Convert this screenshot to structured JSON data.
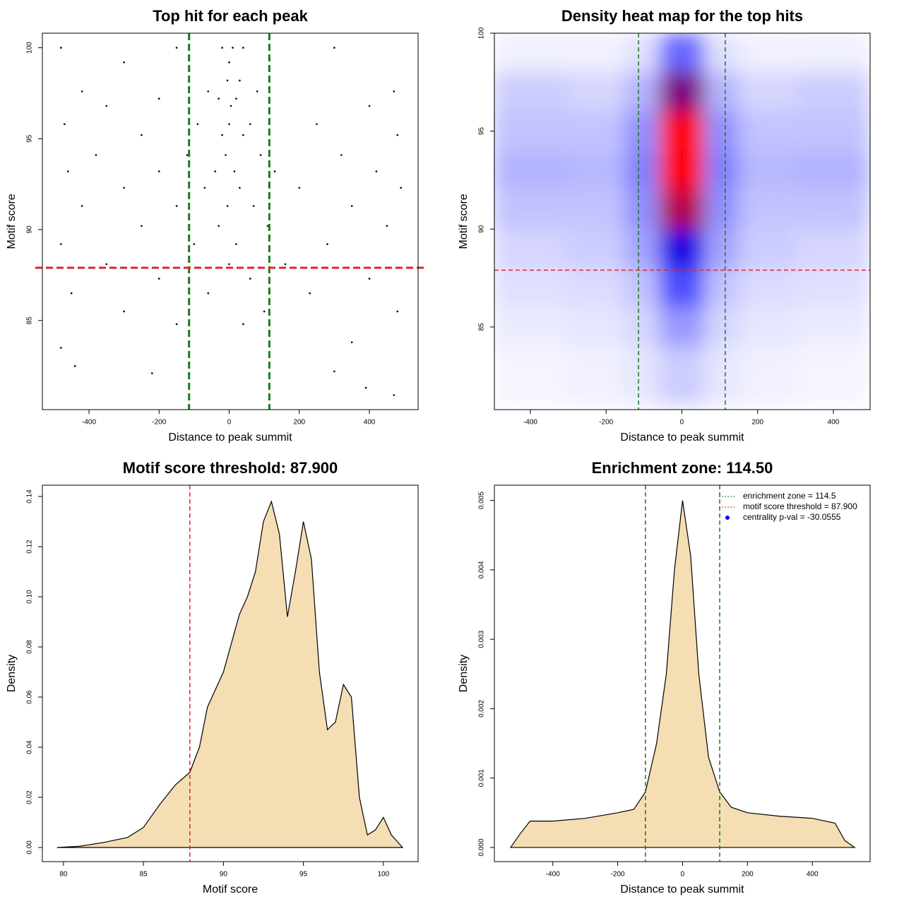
{
  "chart_data": [
    {
      "type": "scatter",
      "title": "Top hit for each peak",
      "x_label": "Distance to peak summit",
      "y_label": "Motif score",
      "xlim": [
        -533,
        539
      ],
      "ylim": [
        80.1,
        100.8
      ],
      "xticks": [
        -400,
        -200,
        0,
        200,
        400
      ],
      "yticks": [
        85,
        90,
        95,
        100
      ],
      "color": "#000000",
      "x": [
        -480,
        -150,
        -20,
        10,
        40,
        300,
        -300,
        0,
        -5,
        30,
        -420,
        -60,
        80,
        470,
        -200,
        -30,
        20,
        -350,
        5,
        400,
        -470,
        -90,
        0,
        60,
        250,
        -250,
        -20,
        40,
        480,
        -380,
        -120,
        -10,
        90,
        320,
        -460,
        -200,
        -40,
        15,
        130,
        420,
        -300,
        -70,
        30,
        200,
        490,
        -420,
        -150,
        -5,
        70,
        350,
        -250,
        -30,
        110,
        450,
        -480,
        -100,
        20,
        280,
        -350,
        0,
        160,
        -200,
        60,
        400,
        -450,
        -60,
        230,
        -300,
        100,
        480,
        -150,
        40,
        -480,
        350,
        -440,
        -220,
        300,
        390,
        470
      ],
      "y": [
        100,
        100,
        100,
        100,
        100,
        100,
        99.2,
        99.2,
        98.2,
        98.2,
        97.6,
        97.6,
        97.6,
        97.6,
        97.2,
        97.2,
        97.2,
        96.8,
        96.8,
        96.8,
        95.8,
        95.8,
        95.8,
        95.8,
        95.8,
        95.2,
        95.2,
        95.2,
        95.2,
        94.1,
        94.1,
        94.1,
        94.1,
        94.1,
        93.2,
        93.2,
        93.2,
        93.2,
        93.2,
        93.2,
        92.3,
        92.3,
        92.3,
        92.3,
        92.3,
        91.3,
        91.3,
        91.3,
        91.3,
        91.3,
        90.2,
        90.2,
        90.2,
        90.2,
        89.2,
        89.2,
        89.2,
        89.2,
        88.1,
        88.1,
        88.1,
        87.3,
        87.3,
        87.3,
        86.5,
        86.5,
        86.5,
        85.5,
        85.5,
        85.5,
        84.8,
        84.8,
        83.5,
        83.8,
        82.5,
        82.1,
        82.2,
        81.3,
        80.9
      ],
      "vlines": [
        {
          "value": -114.5,
          "color": "#1a7a1a"
        },
        {
          "value": 114.5,
          "color": "#1a7a1a"
        }
      ],
      "hlines": [
        {
          "value": 87.9,
          "color": "#e0252a"
        }
      ]
    },
    {
      "type": "heatmap",
      "title": "Density heat map for the top hits",
      "x_label": "Distance to peak summit",
      "y_label": "Motif score",
      "xlim": [
        -495,
        497
      ],
      "ylim": [
        80.78,
        100
      ],
      "xticks": [
        -400,
        -200,
        0,
        200,
        400
      ],
      "yticks": [
        85,
        90,
        95,
        100
      ],
      "xbins": [
        -500,
        -300,
        -150,
        -60,
        60,
        150,
        300,
        500
      ],
      "ybins": [
        81,
        84,
        86,
        88,
        90,
        92,
        94,
        96,
        98,
        100
      ],
      "values": [
        [
          0.02,
          0.03,
          0.05,
          0.1,
          0.05,
          0.03,
          0.02
        ],
        [
          0.04,
          0.05,
          0.08,
          0.2,
          0.08,
          0.05,
          0.04
        ],
        [
          0.06,
          0.07,
          0.12,
          0.35,
          0.12,
          0.07,
          0.06
        ],
        [
          0.08,
          0.1,
          0.18,
          0.55,
          0.18,
          0.1,
          0.08
        ],
        [
          0.12,
          0.12,
          0.22,
          0.85,
          0.22,
          0.12,
          0.12
        ],
        [
          0.15,
          0.14,
          0.25,
          1.0,
          0.25,
          0.14,
          0.15
        ],
        [
          0.12,
          0.12,
          0.22,
          1.0,
          0.22,
          0.12,
          0.12
        ],
        [
          0.1,
          0.08,
          0.15,
          0.75,
          0.15,
          0.08,
          0.1
        ],
        [
          0.03,
          0.03,
          0.06,
          0.3,
          0.06,
          0.03,
          0.03
        ]
      ],
      "vlines": [
        {
          "value": -114.5,
          "color": "#1a7a1a"
        },
        {
          "value": 114.5,
          "color": "#1a7a1a"
        }
      ],
      "hlines": [
        {
          "value": 87.9,
          "color": "#e0252a"
        }
      ]
    },
    {
      "type": "area",
      "title": "Motif score threshold: 87.900",
      "x_label": "Motif score",
      "y_label": "Density",
      "xlim": [
        78.68,
        102.17
      ],
      "ylim": [
        -0.00563,
        0.1445
      ],
      "xticks": [
        80,
        85,
        90,
        95,
        100
      ],
      "yticks": [
        {
          "value": 0,
          "label": "0.00"
        },
        {
          "value": 0.02,
          "label": "0.02"
        },
        {
          "value": 0.04,
          "label": "0.04"
        },
        {
          "value": 0.06,
          "label": "0.06"
        },
        {
          "value": 0.08,
          "label": "0.08"
        },
        {
          "value": 0.1,
          "label": "0.10"
        },
        {
          "value": 0.12,
          "label": "0.12"
        },
        {
          "value": 0.14,
          "label": "0.14"
        }
      ],
      "color": "#f5deb3",
      "x": [
        79.6,
        81,
        82.5,
        84,
        85,
        86,
        87,
        87.9,
        88.5,
        89,
        89.5,
        90,
        91,
        91.5,
        92,
        92.5,
        93,
        93.5,
        94,
        94.5,
        95,
        95.5,
        96,
        96.5,
        97,
        97.5,
        98,
        98.5,
        99,
        99.5,
        100,
        100.5,
        101.2
      ],
      "values": [
        0,
        0.0005,
        0.002,
        0.004,
        0.008,
        0.017,
        0.025,
        0.03,
        0.04,
        0.056,
        0.063,
        0.07,
        0.093,
        0.1,
        0.11,
        0.13,
        0.138,
        0.125,
        0.092,
        0.11,
        0.13,
        0.115,
        0.07,
        0.047,
        0.05,
        0.065,
        0.06,
        0.02,
        0.005,
        0.007,
        0.012,
        0.005,
        0
      ],
      "vlines": [
        {
          "value": 87.9,
          "color": "#e0252a"
        }
      ]
    },
    {
      "type": "area",
      "title": "Enrichment zone: 114.50",
      "x_label": "Distance to peak summit",
      "y_label": "Density",
      "xlim": [
        -580,
        578
      ],
      "ylim": [
        -0.000204,
        0.00522
      ],
      "xticks": [
        -400,
        -200,
        0,
        200,
        400
      ],
      "yticks": [
        {
          "value": 0,
          "label": "0.000"
        },
        {
          "value": 0.001,
          "label": "0.001"
        },
        {
          "value": 0.002,
          "label": "0.002"
        },
        {
          "value": 0.003,
          "label": "0.003"
        },
        {
          "value": 0.004,
          "label": "0.004"
        },
        {
          "value": 0.005,
          "label": "0.005"
        }
      ],
      "color": "#f5deb3",
      "x": [
        -530,
        -500,
        -470,
        -400,
        -300,
        -200,
        -150,
        -114.5,
        -80,
        -50,
        -25,
        0,
        25,
        50,
        80,
        114.5,
        150,
        200,
        300,
        400,
        470,
        500,
        530
      ],
      "values": [
        0,
        0.0002,
        0.00038,
        0.00038,
        0.00042,
        0.0005,
        0.00055,
        0.0008,
        0.0015,
        0.0025,
        0.004,
        0.005,
        0.0042,
        0.0025,
        0.0013,
        0.0008,
        0.00058,
        0.0005,
        0.00045,
        0.00042,
        0.00035,
        0.0001,
        0
      ],
      "vlines": [
        {
          "value": -114.5,
          "color": "#1a7a1a"
        },
        {
          "value": 114.5,
          "color": "#1a7a1a"
        }
      ],
      "legend": [
        {
          "label": "enrichment zone = 114.5",
          "color": "#1a7a1a",
          "symbol": "line"
        },
        {
          "label": "motif score threshold = 87.900",
          "color": "#e0252a",
          "symbol": "line"
        },
        {
          "label": "centrality p-val = -30.0555",
          "color": "#0000ff",
          "symbol": "point"
        }
      ]
    }
  ]
}
